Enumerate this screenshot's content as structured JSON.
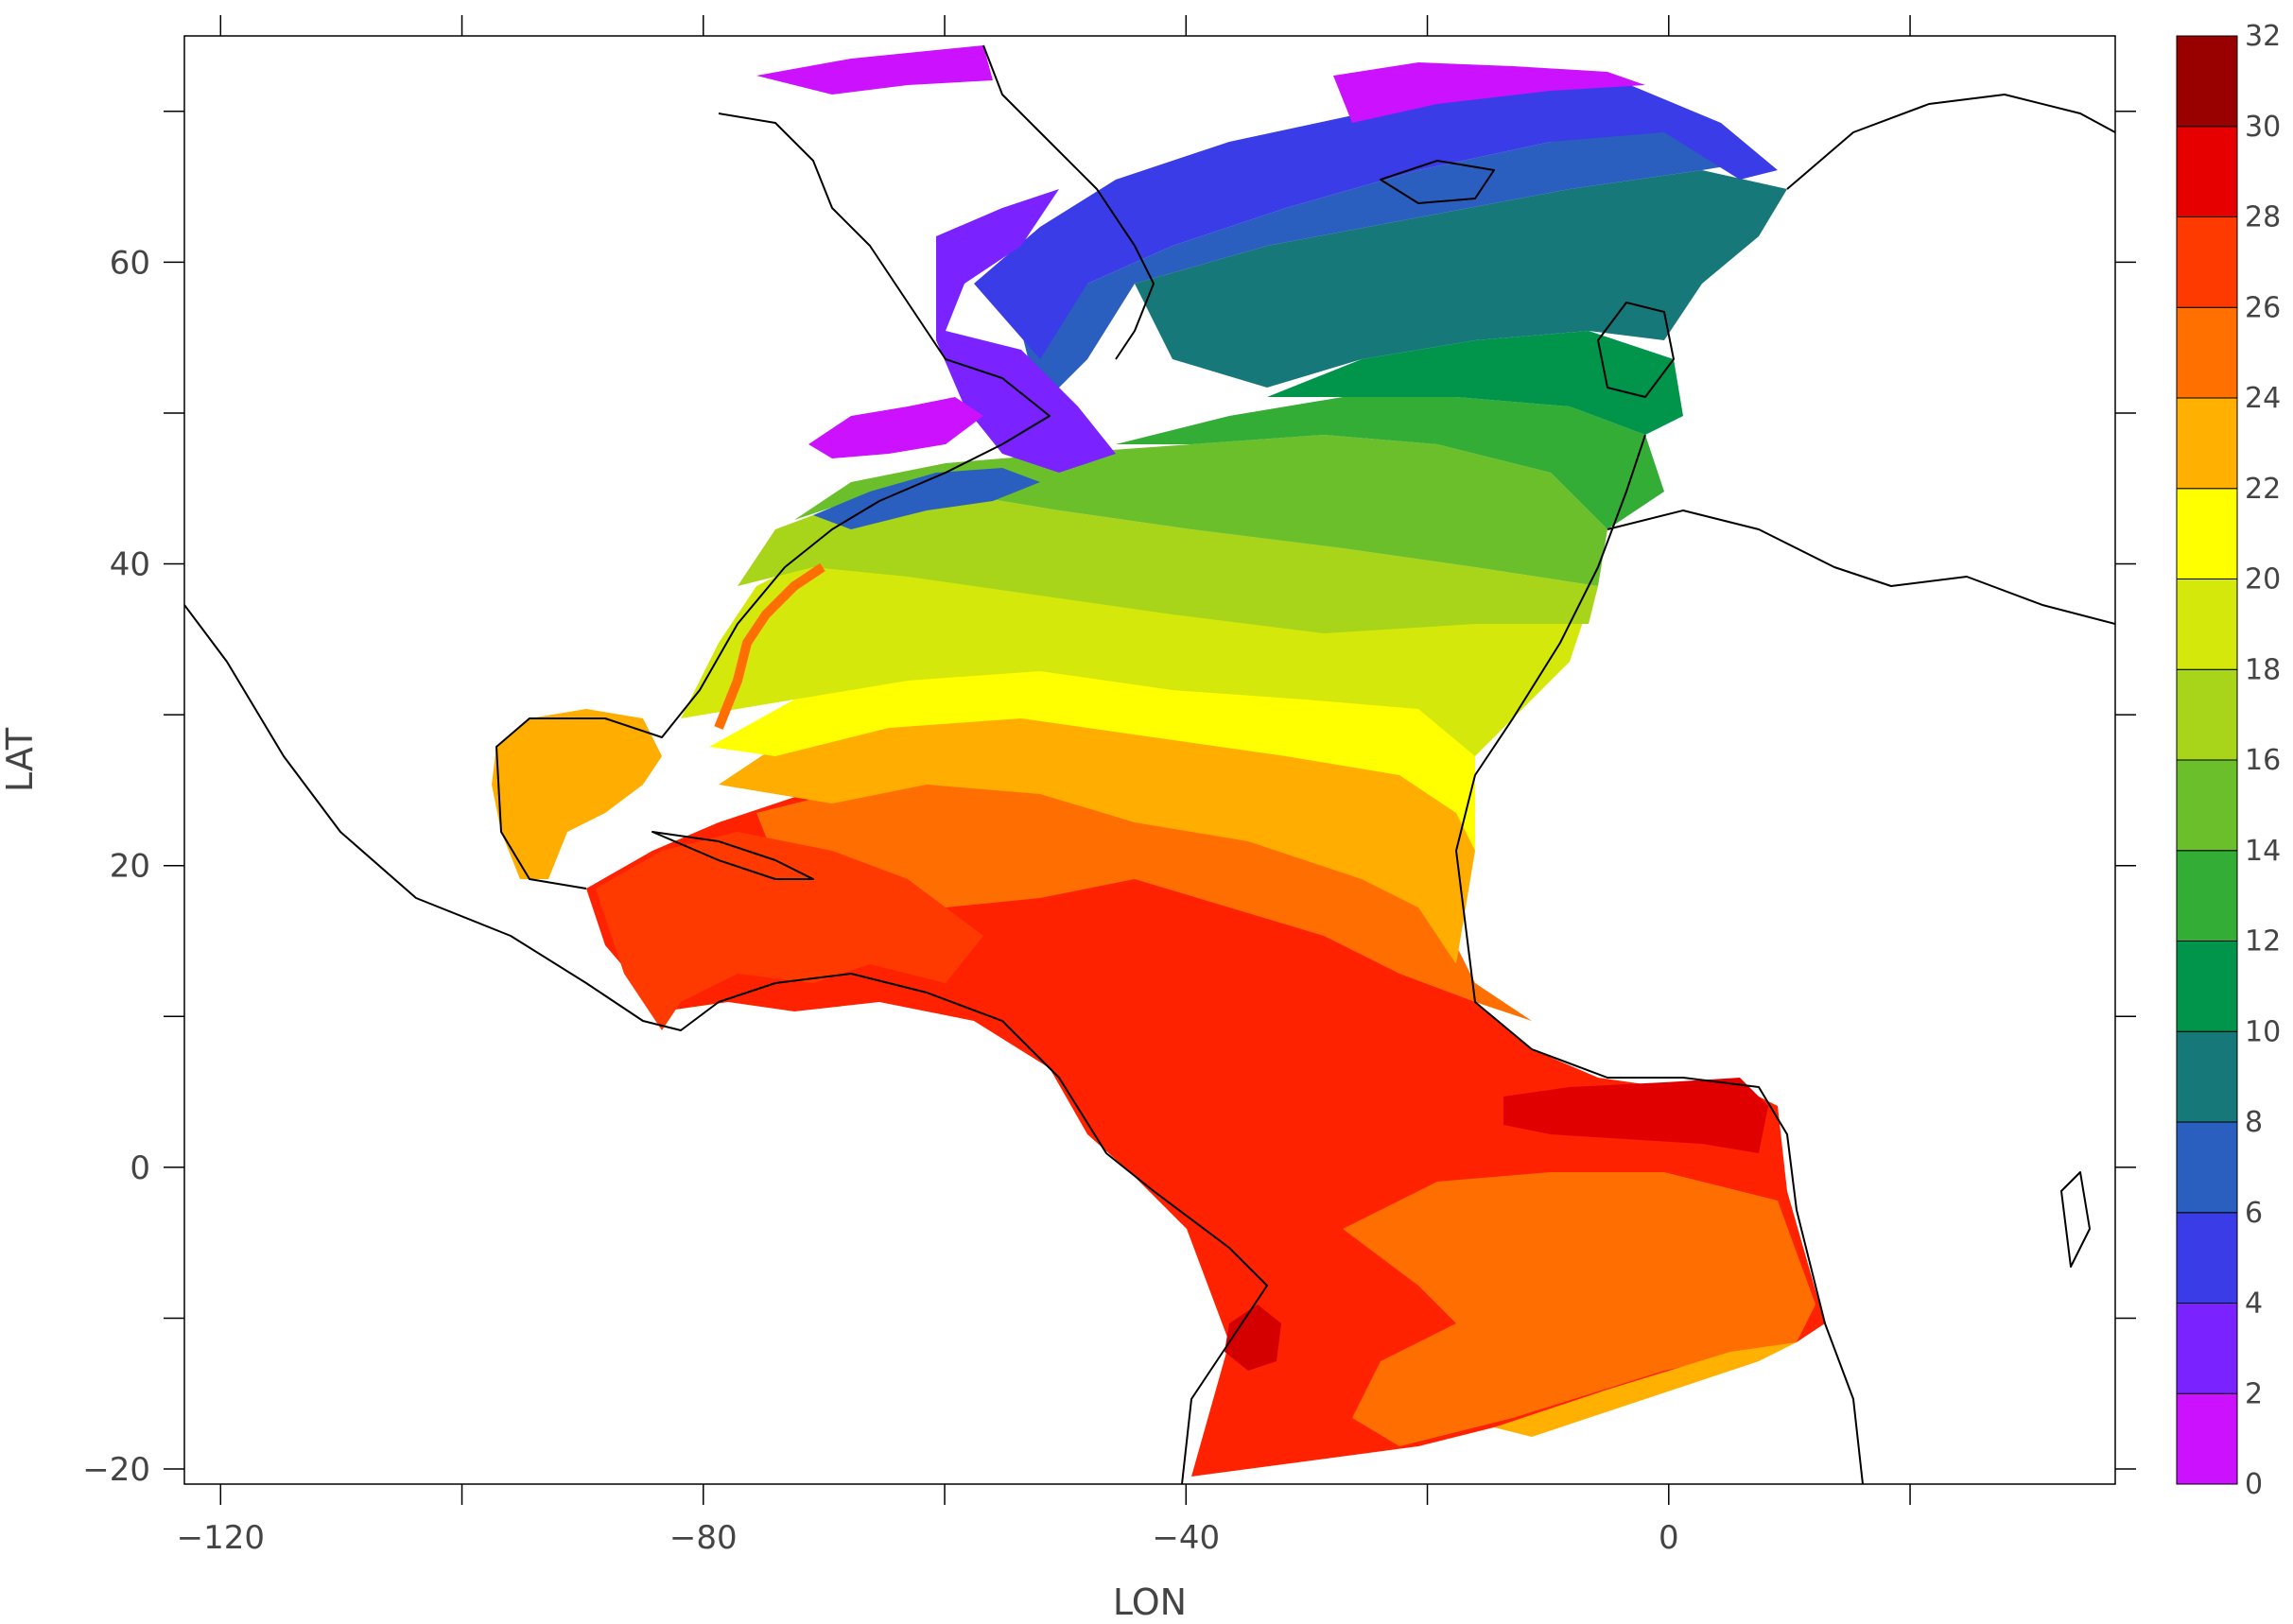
{
  "chart_data": {
    "type": "heatmap",
    "title": "",
    "xlabel": "LON",
    "ylabel": "LAT",
    "xlim": [
      -123,
      37
    ],
    "ylim": [
      -21,
      75
    ],
    "x_ticks": [
      {
        "value": -120,
        "label": "−120"
      },
      {
        "value": -100,
        "label": ""
      },
      {
        "value": -80,
        "label": "−80"
      },
      {
        "value": -60,
        "label": ""
      },
      {
        "value": -40,
        "label": "−40"
      },
      {
        "value": -20,
        "label": ""
      },
      {
        "value": 0,
        "label": "0"
      },
      {
        "value": 20,
        "label": ""
      }
    ],
    "y_ticks": [
      {
        "value": -20,
        "label": "−20"
      },
      {
        "value": -10,
        "label": ""
      },
      {
        "value": 0,
        "label": "0"
      },
      {
        "value": 10,
        "label": ""
      },
      {
        "value": 20,
        "label": "20"
      },
      {
        "value": 30,
        "label": ""
      },
      {
        "value": 40,
        "label": "40"
      },
      {
        "value": 50,
        "label": ""
      },
      {
        "value": 60,
        "label": "60"
      },
      {
        "value": 70,
        "label": ""
      }
    ],
    "colorbar": {
      "levels": [
        "0",
        "2",
        "4",
        "6",
        "8",
        "10",
        "12",
        "14",
        "16",
        "18",
        "20",
        "22",
        "24",
        "26",
        "28",
        "30",
        "32"
      ],
      "colors": [
        "#cc11ff",
        "#7a22ff",
        "#3a3ce8",
        "#2a5fbf",
        "#17787a",
        "#00954a",
        "#34ad36",
        "#6bbf2a",
        "#a8d41a",
        "#d4e80c",
        "#ffff00",
        "#ffb000",
        "#ff7000",
        "#ff3a00",
        "#e60000",
        "#990000"
      ]
    },
    "temperature_bands": [
      {
        "min": 0,
        "max": 2,
        "lat_from": 75,
        "lat_to": 65
      },
      {
        "min": 2,
        "max": 4,
        "lat_from": 64,
        "lat_to": 58
      },
      {
        "min": 4,
        "max": 6,
        "lat_from": 60,
        "lat_to": 50
      },
      {
        "min": 6,
        "max": 8,
        "lat_from": 58,
        "lat_to": 52
      },
      {
        "min": 8,
        "max": 10,
        "lat_from": 60,
        "lat_to": 55
      },
      {
        "min": 10,
        "max": 12,
        "lat_from": 55,
        "lat_to": 47
      },
      {
        "min": 12,
        "max": 14,
        "lat_from": 50,
        "lat_to": 44
      },
      {
        "min": 14,
        "max": 16,
        "lat_from": 46,
        "lat_to": 40
      },
      {
        "min": 16,
        "max": 18,
        "lat_from": 42,
        "lat_to": 36
      },
      {
        "min": 18,
        "max": 20,
        "lat_from": 37,
        "lat_to": 31
      },
      {
        "min": 20,
        "max": 22,
        "lat_from": 32,
        "lat_to": 26
      },
      {
        "min": 22,
        "max": 24,
        "lat_from": 27,
        "lat_to": 20
      },
      {
        "min": 24,
        "max": 26,
        "lat_from": 22,
        "lat_to": 12
      },
      {
        "min": 26,
        "max": 28,
        "lat_from": 14,
        "lat_to": -21
      },
      {
        "min": 28,
        "max": 30,
        "lat_from": 5,
        "lat_to": 2
      }
    ]
  }
}
